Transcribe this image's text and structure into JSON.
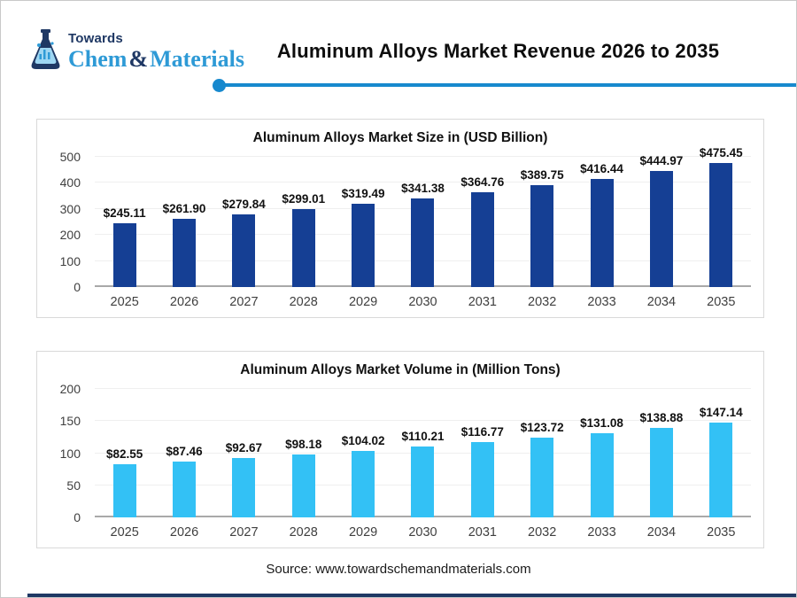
{
  "header": {
    "logo": {
      "line1": "Towards",
      "chem": "Chem",
      "amp": "&",
      "materials": "Materials"
    },
    "title": "Aluminum Alloys Market Revenue 2026 to 2035"
  },
  "colors": {
    "accent_line": "#1789ce",
    "bar_dark_blue": "#153f94",
    "bar_light_blue": "#33c1f5",
    "logo_navy": "#1f3864",
    "logo_blue": "#2e9ad6",
    "gridline": "#efefef",
    "baseline": "#a9a9a9"
  },
  "chart_data": [
    {
      "type": "bar",
      "title": "Aluminum Alloys Market Size in (USD Billion)",
      "categories": [
        "2025",
        "2026",
        "2027",
        "2028",
        "2029",
        "2030",
        "2031",
        "2032",
        "2033",
        "2034",
        "2035"
      ],
      "values": [
        245.11,
        261.9,
        279.84,
        299.01,
        319.49,
        341.38,
        364.76,
        389.75,
        416.44,
        444.97,
        475.45
      ],
      "value_labels": [
        "$245.11",
        "$261.90",
        "$279.84",
        "$299.01",
        "$319.49",
        "$341.38",
        "$364.76",
        "$389.75",
        "$416.44",
        "$444.97",
        "$475.45"
      ],
      "xlabel": "",
      "ylabel": "",
      "ylim": [
        0,
        500
      ],
      "yticks": [
        0,
        100,
        200,
        300,
        400,
        500
      ],
      "grid": true,
      "legend": "none",
      "bar_color": "#153f94"
    },
    {
      "type": "bar",
      "title": "Aluminum Alloys Market Volume in (Million Tons)",
      "categories": [
        "2025",
        "2026",
        "2027",
        "2028",
        "2029",
        "2030",
        "2031",
        "2032",
        "2033",
        "2034",
        "2035"
      ],
      "values": [
        82.55,
        87.46,
        92.67,
        98.18,
        104.02,
        110.21,
        116.77,
        123.72,
        131.08,
        138.88,
        147.14
      ],
      "value_labels": [
        "$82.55",
        "$87.46",
        "$92.67",
        "$98.18",
        "$104.02",
        "$110.21",
        "$116.77",
        "$123.72",
        "$131.08",
        "$138.88",
        "$147.14"
      ],
      "xlabel": "",
      "ylabel": "",
      "ylim": [
        0,
        200
      ],
      "yticks": [
        0,
        50,
        100,
        150,
        200
      ],
      "grid": true,
      "legend": "none",
      "bar_color": "#33c1f5"
    }
  ],
  "footer": {
    "source": "Source: www.towardschemandmaterials.com"
  }
}
